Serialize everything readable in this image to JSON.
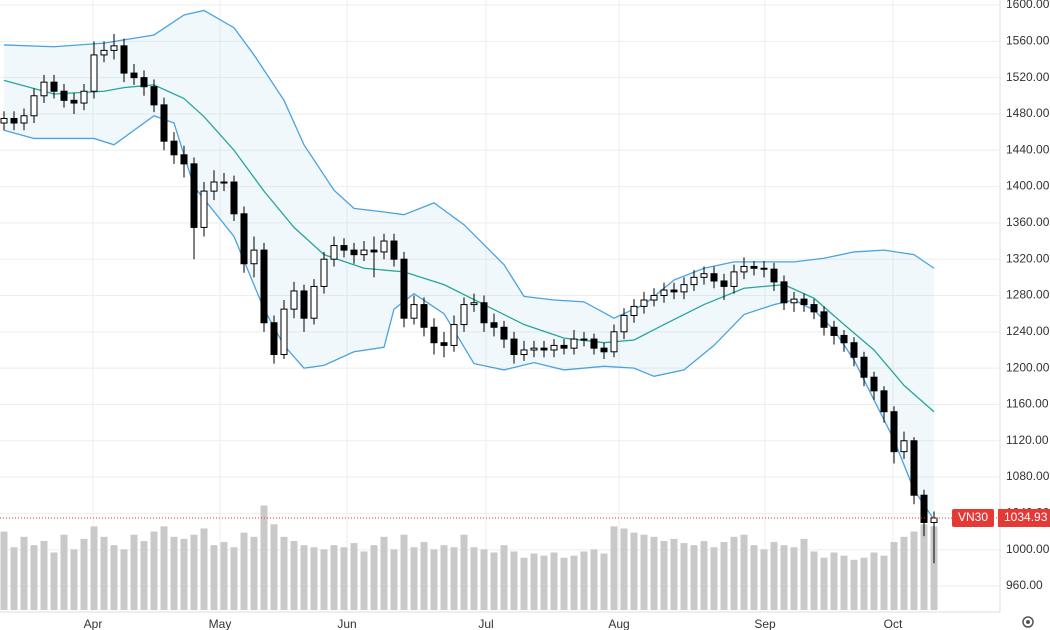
{
  "chart_data": {
    "type": "candlestick",
    "name": "VN30",
    "open": [
      1470,
      1475,
      1470,
      1478,
      1500,
      1515,
      1505,
      1495,
      1492,
      1505,
      1545,
      1550,
      1555,
      1525,
      1520,
      1510,
      1490,
      1450,
      1435,
      1425,
      1355,
      1395,
      1405,
      1405,
      1370,
      1315,
      1330,
      1250,
      1215,
      1265,
      1285,
      1255,
      1290,
      1320,
      1335,
      1330,
      1325,
      1330,
      1328,
      1340,
      1320,
      1255,
      1270,
      1245,
      1228,
      1225,
      1248,
      1270,
      1272,
      1250,
      1245,
      1232,
      1215,
      1220,
      1222,
      1220,
      1225,
      1222,
      1232,
      1232,
      1222,
      1218,
      1240,
      1258,
      1268,
      1275,
      1280,
      1286,
      1284,
      1292,
      1300,
      1304,
      1296,
      1290,
      1306,
      1312,
      1310,
      1309,
      1295,
      1272,
      1276,
      1270,
      1262,
      1245,
      1236,
      1228,
      1212,
      1190,
      1175,
      1152,
      1108,
      1120,
      1060,
      1030
    ],
    "high": [
      1483,
      1483,
      1486,
      1508,
      1523,
      1523,
      1513,
      1503,
      1513,
      1560,
      1560,
      1568,
      1563,
      1535,
      1528,
      1518,
      1498,
      1460,
      1445,
      1432,
      1405,
      1418,
      1415,
      1412,
      1378,
      1345,
      1338,
      1258,
      1275,
      1295,
      1292,
      1298,
      1328,
      1345,
      1343,
      1338,
      1340,
      1345,
      1348,
      1348,
      1328,
      1280,
      1278,
      1255,
      1240,
      1258,
      1278,
      1282,
      1280,
      1260,
      1252,
      1240,
      1230,
      1230,
      1230,
      1232,
      1232,
      1242,
      1240,
      1238,
      1228,
      1248,
      1266,
      1276,
      1284,
      1288,
      1294,
      1294,
      1300,
      1308,
      1312,
      1312,
      1304,
      1314,
      1322,
      1318,
      1318,
      1316,
      1302,
      1284,
      1282,
      1276,
      1268,
      1252,
      1242,
      1234,
      1218,
      1196,
      1180,
      1158,
      1130,
      1124,
      1066,
      1042
    ],
    "low": [
      1462,
      1462,
      1462,
      1470,
      1492,
      1497,
      1487,
      1480,
      1484,
      1497,
      1537,
      1540,
      1515,
      1512,
      1500,
      1482,
      1440,
      1425,
      1410,
      1320,
      1345,
      1385,
      1395,
      1362,
      1305,
      1300,
      1240,
      1205,
      1210,
      1255,
      1240,
      1248,
      1282,
      1312,
      1322,
      1315,
      1318,
      1300,
      1320,
      1312,
      1245,
      1248,
      1235,
      1215,
      1212,
      1218,
      1240,
      1262,
      1240,
      1235,
      1222,
      1205,
      1208,
      1212,
      1212,
      1212,
      1215,
      1215,
      1224,
      1215,
      1210,
      1212,
      1232,
      1250,
      1260,
      1268,
      1272,
      1276,
      1276,
      1285,
      1292,
      1288,
      1275,
      1282,
      1298,
      1302,
      1300,
      1285,
      1264,
      1262,
      1262,
      1254,
      1236,
      1226,
      1218,
      1202,
      1180,
      1165,
      1140,
      1095,
      1100,
      1050,
      1015,
      985
    ],
    "close": [
      1475,
      1470,
      1478,
      1500,
      1515,
      1505,
      1495,
      1492,
      1505,
      1545,
      1550,
      1555,
      1525,
      1520,
      1510,
      1490,
      1450,
      1435,
      1425,
      1355,
      1395,
      1405,
      1405,
      1370,
      1315,
      1330,
      1250,
      1215,
      1265,
      1285,
      1255,
      1290,
      1320,
      1335,
      1330,
      1325,
      1330,
      1328,
      1340,
      1320,
      1255,
      1270,
      1245,
      1228,
      1225,
      1248,
      1270,
      1272,
      1250,
      1245,
      1232,
      1215,
      1220,
      1222,
      1220,
      1225,
      1222,
      1232,
      1232,
      1222,
      1218,
      1240,
      1258,
      1268,
      1275,
      1280,
      1286,
      1284,
      1292,
      1300,
      1304,
      1296,
      1290,
      1306,
      1312,
      1310,
      1309,
      1295,
      1272,
      1276,
      1270,
      1262,
      1245,
      1236,
      1228,
      1212,
      1190,
      1175,
      1152,
      1108,
      1120,
      1060,
      1030,
      1034.93
    ],
    "volume": [
      75,
      60,
      70,
      62,
      66,
      55,
      72,
      58,
      68,
      80,
      70,
      62,
      58,
      72,
      66,
      75,
      80,
      70,
      68,
      72,
      78,
      62,
      65,
      60,
      74,
      70,
      100,
      82,
      70,
      66,
      62,
      60,
      58,
      62,
      60,
      64,
      56,
      62,
      70,
      58,
      72,
      60,
      65,
      58,
      62,
      60,
      72,
      60,
      58,
      55,
      62,
      56,
      50,
      54,
      52,
      55,
      50,
      52,
      56,
      58,
      54,
      80,
      78,
      74,
      72,
      70,
      66,
      68,
      64,
      62,
      66,
      60,
      65,
      70,
      72,
      62,
      58,
      65,
      62,
      60,
      68,
      56,
      50,
      55,
      52,
      48,
      50,
      55,
      52,
      65,
      70,
      75,
      82,
      80
    ],
    "vlim": [
      0,
      110
    ],
    "bands": {
      "upper": {
        "color": "#4aa3df",
        "x": [
          0,
          5,
          10,
          15,
          18,
          20,
          23,
          25,
          28,
          30,
          33,
          35,
          38,
          40,
          43,
          46,
          48,
          50,
          52,
          55,
          58,
          61,
          64,
          67,
          70,
          73,
          76,
          79,
          82,
          85,
          88,
          91,
          93
        ],
        "values": [
          1556,
          1554,
          1558,
          1567,
          1589,
          1594,
          1575,
          1545,
          1495,
          1446,
          1396,
          1376,
          1372,
          1369,
          1382,
          1358,
          1336,
          1314,
          1279,
          1275,
          1273,
          1255,
          1270,
          1297,
          1310,
          1317,
          1317,
          1317,
          1321,
          1328,
          1330,
          1325,
          1310
        ]
      },
      "middle": {
        "color": "#26a69a",
        "x": [
          0,
          5,
          10,
          12,
          15,
          18,
          20,
          23,
          26,
          29,
          32,
          36,
          40,
          44,
          48,
          52,
          56,
          60,
          63,
          66,
          70,
          74,
          78,
          81,
          84,
          87,
          90,
          93
        ],
        "values": [
          1517,
          1502,
          1505,
          1509,
          1512,
          1497,
          1477,
          1440,
          1395,
          1355,
          1325,
          1310,
          1306,
          1292,
          1270,
          1248,
          1233,
          1228,
          1231,
          1248,
          1270,
          1288,
          1292,
          1277,
          1248,
          1220,
          1181,
          1152
        ]
      },
      "lower": {
        "color": "#4aa3df",
        "x": [
          0,
          3,
          9,
          11,
          13,
          15,
          17,
          19,
          23,
          26,
          28,
          30,
          32,
          35,
          38,
          39,
          41,
          44,
          47,
          50,
          53,
          56,
          60,
          63,
          65,
          68,
          71,
          74,
          77,
          79,
          81,
          83,
          85,
          87,
          89,
          91,
          93
        ],
        "values": [
          1462,
          1453,
          1453,
          1446,
          1462,
          1478,
          1470,
          1400,
          1345,
          1265,
          1225,
          1200,
          1203,
          1218,
          1223,
          1265,
          1282,
          1260,
          1205,
          1198,
          1206,
          1198,
          1202,
          1200,
          1191,
          1198,
          1225,
          1259,
          1270,
          1275,
          1264,
          1242,
          1209,
          1165,
          1121,
          1066,
          1033
        ]
      }
    },
    "up_color": "#ffffff",
    "down_color": "#000000",
    "volume_color": "#c9c9c9",
    "last_color": "#e53935",
    "xlim": [
      -0.4,
      99.6
    ],
    "xticks": [
      {
        "value": 8.9,
        "label": "Apr"
      },
      {
        "value": 21.6,
        "label": "May"
      },
      {
        "value": 34.3,
        "label": "Jun"
      },
      {
        "value": 48.2,
        "label": "Jul"
      },
      {
        "value": 61.5,
        "label": "Aug"
      },
      {
        "value": 76.1,
        "label": "Sep"
      },
      {
        "value": 88.9,
        "label": "Oct"
      }
    ],
    "ylim": [
      960,
      1600
    ],
    "yticks": [
      {
        "value": 960,
        "label": "960.00"
      },
      {
        "value": 1000,
        "label": "1000.00"
      },
      {
        "value": 1040,
        "label": "1040.00"
      },
      {
        "value": 1080,
        "label": "1080.00"
      },
      {
        "value": 1120,
        "label": "1120.00"
      },
      {
        "value": 1160,
        "label": "1160.00"
      },
      {
        "value": 1200,
        "label": "1200.00"
      },
      {
        "value": 1240,
        "label": "1240.00"
      },
      {
        "value": 1280,
        "label": "1280.00"
      },
      {
        "value": 1320,
        "label": "1320.00"
      },
      {
        "value": 1360,
        "label": "1360.00"
      },
      {
        "value": 1400,
        "label": "1400.00"
      },
      {
        "value": 1440,
        "label": "1440.00"
      },
      {
        "value": 1480,
        "label": "1480.00"
      },
      {
        "value": 1520,
        "label": "1520.00"
      },
      {
        "value": 1560,
        "label": "1560.00"
      },
      {
        "value": 1600,
        "label": "1600.00"
      }
    ],
    "grid": true
  }
}
